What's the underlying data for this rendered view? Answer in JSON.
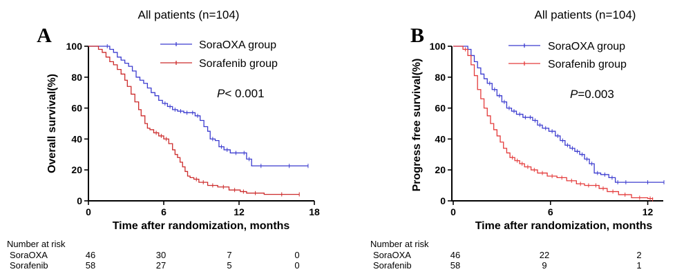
{
  "figure": {
    "risk_title": "Number at risk"
  },
  "chart_data": [
    {
      "type": "line",
      "panel_label": "A",
      "title": "All patients (n=104)",
      "xlabel": "Time after randomization, months",
      "ylabel": "Overall survival(%)",
      "xlim": [
        0,
        18
      ],
      "ylim": [
        0,
        100
      ],
      "x_ticks": [
        "0",
        "6",
        "12",
        "18"
      ],
      "y_ticks": [
        "0",
        "20",
        "40",
        "60",
        "80",
        "100"
      ],
      "annotation_italic": "P",
      "annotation_rest": "< 0.001",
      "grid": false,
      "legend_position": "top-right",
      "series": [
        {
          "name": "SoraOXA group",
          "color": "#3b3bcf",
          "x": [
            0,
            1.3,
            1.7,
            2.0,
            2.3,
            2.6,
            2.9,
            3.2,
            3.5,
            3.8,
            4.1,
            4.4,
            4.7,
            5.0,
            5.3,
            5.6,
            5.9,
            6.3,
            6.7,
            7.1,
            7.6,
            8.1,
            8.5,
            8.9,
            9.2,
            9.5,
            9.7,
            10.1,
            10.4,
            10.8,
            11.3,
            12.2,
            12.6,
            13.0,
            14.5,
            17.5
          ],
          "y": [
            100,
            100,
            98,
            96,
            93,
            91,
            89,
            87,
            84,
            80,
            78,
            76,
            73,
            70,
            68,
            65,
            63,
            61,
            59,
            58,
            57,
            57,
            55,
            52,
            48,
            45,
            40,
            39,
            35,
            33,
            31,
            31,
            27,
            22.6,
            22.6,
            22.6
          ]
        },
        {
          "name": "Sorafenib group",
          "color": "#cc2a2a",
          "x": [
            0,
            0.8,
            1.1,
            1.4,
            1.7,
            2.0,
            2.3,
            2.6,
            2.9,
            3.1,
            3.4,
            3.7,
            4.0,
            4.2,
            4.5,
            4.7,
            4.9,
            5.2,
            5.6,
            6.0,
            6.4,
            6.7,
            6.9,
            7.1,
            7.3,
            7.5,
            7.7,
            7.9,
            8.1,
            8.4,
            8.8,
            9.5,
            10.3,
            11.2,
            12.1,
            12.6,
            14.0,
            16.8
          ],
          "y": [
            100,
            98,
            96,
            93,
            90,
            88,
            85,
            82,
            78,
            74,
            69,
            64,
            59,
            55,
            50,
            47,
            46,
            44,
            42,
            40,
            37,
            33,
            30,
            28,
            25,
            22,
            19,
            16,
            15,
            14,
            12,
            10,
            9,
            7,
            6,
            5,
            4.2,
            4.2
          ]
        }
      ],
      "risk_table": {
        "times": [
          "0",
          "6",
          "12",
          "18"
        ],
        "rows": [
          {
            "label": "SoraOXA",
            "counts": [
              "46",
              "30",
              "7",
              "0"
            ]
          },
          {
            "label": "Sorafenib",
            "counts": [
              "58",
              "27",
              "5",
              "0"
            ]
          }
        ]
      }
    },
    {
      "type": "line",
      "panel_label": "B",
      "title": "All patients (n=104)",
      "xlabel": "Time after randomization, months",
      "ylabel": "Progress free survival(%)",
      "xlim": [
        0,
        13
      ],
      "ylim": [
        0,
        100
      ],
      "x_ticks": [
        "0",
        "6",
        "12"
      ],
      "y_ticks": [
        "0",
        "20",
        "40",
        "60",
        "80",
        "100"
      ],
      "annotation_italic": "P",
      "annotation_rest": "=0.003",
      "grid": false,
      "legend_position": "top-right",
      "series": [
        {
          "name": "SoraOXA group",
          "color": "#3b3bcf",
          "x": [
            0,
            0.9,
            1.1,
            1.3,
            1.5,
            1.7,
            1.9,
            2.1,
            2.4,
            2.7,
            3.0,
            3.3,
            3.6,
            3.9,
            4.3,
            4.6,
            4.9,
            5.2,
            5.5,
            5.9,
            6.3,
            6.6,
            6.9,
            7.2,
            7.5,
            7.8,
            8.1,
            8.4,
            8.7,
            9.1,
            9.6,
            10.0,
            10.3,
            11.0,
            13.0
          ],
          "y": [
            100,
            98,
            94,
            90,
            86,
            82,
            79,
            76,
            72,
            68,
            64,
            60,
            58,
            56,
            54,
            54,
            52,
            49,
            47,
            45,
            42,
            39,
            36,
            34,
            32,
            30,
            27,
            24,
            18,
            17,
            15,
            12,
            12,
            12,
            12
          ]
        },
        {
          "name": "Sorafenib group",
          "color": "#e43a3a",
          "x": [
            0,
            0.6,
            0.9,
            1.1,
            1.3,
            1.5,
            1.7,
            1.9,
            2.1,
            2.3,
            2.5,
            2.7,
            2.9,
            3.1,
            3.3,
            3.5,
            3.8,
            4.1,
            4.4,
            4.8,
            5.2,
            5.8,
            6.4,
            7.0,
            7.6,
            8.1,
            8.6,
            9.0,
            9.5,
            10.2,
            11.0,
            12.0,
            12.3
          ],
          "y": [
            100,
            98,
            94,
            88,
            81,
            72,
            66,
            60,
            55,
            50,
            46,
            42,
            38,
            34,
            31,
            28,
            26,
            24,
            22,
            20,
            18,
            16,
            15,
            13,
            11,
            10,
            10,
            8,
            6,
            4,
            2,
            1.5,
            1
          ]
        }
      ],
      "risk_table": {
        "times": [
          "0",
          "6",
          "12"
        ],
        "rows": [
          {
            "label": "SoraOXA",
            "counts": [
              "46",
              "22",
              "2"
            ]
          },
          {
            "label": "Sorafenib",
            "counts": [
              "58",
              "9",
              "1"
            ]
          }
        ]
      }
    }
  ]
}
